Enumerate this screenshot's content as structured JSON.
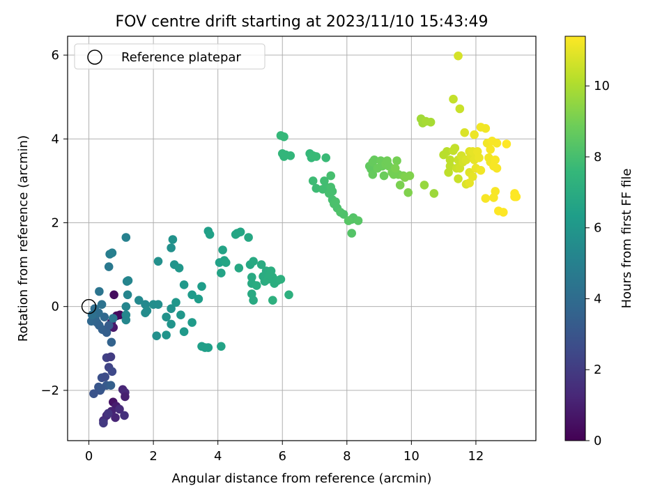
{
  "chart_data": {
    "type": "scatter",
    "title": "FOV centre drift starting at 2023/11/10 15:43:49",
    "xlabel": "Angular distance from reference (arcmin)",
    "ylabel": "Rotation from reference (arcmin)",
    "xlim": [
      -0.66,
      13.86
    ],
    "ylim": [
      -3.2,
      6.45
    ],
    "xticks": [
      0,
      2,
      4,
      6,
      8,
      10,
      12
    ],
    "yticks": [
      -2,
      0,
      2,
      4,
      6
    ],
    "xtick_labels": [
      "0",
      "2",
      "4",
      "6",
      "8",
      "10",
      "12"
    ],
    "ytick_labels": [
      "−2",
      "0",
      "2",
      "4",
      "6"
    ],
    "grid": true,
    "legend": {
      "location": "upper-left",
      "entries": [
        {
          "label": "Reference platepar",
          "marker": "open-circle"
        }
      ]
    },
    "reference_point": {
      "x": 0,
      "y": 0
    },
    "colorbar": {
      "label": "Hours from first FF file",
      "colormap": "viridis",
      "range": [
        0,
        11.4
      ],
      "ticks": [
        0,
        2,
        4,
        6,
        8,
        10
      ],
      "tick_labels": [
        "0",
        "2",
        "4",
        "6",
        "8",
        "10"
      ]
    },
    "series": [
      {
        "values_format": "[x_arcmin, y_arcmin, hours]",
        "points": [
          [
            0.86,
            -0.22,
            0.2
          ],
          [
            0.96,
            -0.2,
            0.3
          ],
          [
            0.78,
            0.28,
            0.4
          ],
          [
            0.7,
            -0.38,
            0.6
          ],
          [
            0.76,
            -0.5,
            0.8
          ],
          [
            0.75,
            -2.28,
            0.6
          ],
          [
            0.85,
            -2.38,
            0.9
          ],
          [
            0.7,
            -2.5,
            1.1
          ],
          [
            0.82,
            -2.65,
            1.2
          ],
          [
            0.55,
            -2.6,
            1.3
          ],
          [
            0.45,
            -2.72,
            1.5
          ],
          [
            0.95,
            -2.45,
            1.4
          ],
          [
            1.1,
            -2.6,
            1.6
          ],
          [
            1.05,
            -1.98,
            1.2
          ],
          [
            1.12,
            -2.05,
            1.3
          ],
          [
            1.12,
            -2.15,
            1.0
          ],
          [
            0.6,
            -2.55,
            1.7
          ],
          [
            0.45,
            -2.78,
            1.9
          ],
          [
            0.55,
            -1.22,
            2.2
          ],
          [
            0.68,
            -1.2,
            2.0
          ],
          [
            0.62,
            -1.45,
            2.3
          ],
          [
            0.72,
            -1.55,
            2.5
          ],
          [
            0.4,
            -1.7,
            2.8
          ],
          [
            0.5,
            -1.68,
            2.6
          ],
          [
            0.3,
            -1.92,
            3.0
          ],
          [
            0.35,
            -2.0,
            2.9
          ],
          [
            0.55,
            -1.88,
            3.2
          ],
          [
            0.68,
            -1.88,
            3.4
          ],
          [
            0.15,
            -2.08,
            2.9
          ],
          [
            0.38,
            -1.95,
            3.1
          ],
          [
            0.7,
            -0.85,
            3.6
          ],
          [
            0.2,
            -0.3,
            3.9
          ],
          [
            0.08,
            -0.35,
            3.8
          ],
          [
            0.25,
            -0.38,
            3.7
          ],
          [
            0.32,
            -0.45,
            3.6
          ],
          [
            0.42,
            -0.55,
            3.5
          ],
          [
            0.55,
            -0.62,
            3.4
          ],
          [
            0.62,
            -0.45,
            3.3
          ],
          [
            0.48,
            -0.25,
            3.8
          ],
          [
            0.3,
            -0.15,
            4.0
          ],
          [
            0.18,
            -0.05,
            4.1
          ],
          [
            0.1,
            -0.2,
            4.2
          ],
          [
            0.4,
            0.05,
            4.3
          ],
          [
            0.32,
            0.36,
            4.4
          ],
          [
            0.62,
            0.95,
            4.6
          ],
          [
            0.65,
            1.25,
            4.8
          ],
          [
            0.72,
            1.28,
            4.9
          ],
          [
            0.75,
            -0.28,
            4.5
          ],
          [
            1.15,
            1.65,
            5.0
          ],
          [
            1.18,
            0.6,
            5.1
          ],
          [
            1.22,
            0.62,
            5.2
          ],
          [
            1.2,
            0.28,
            5.2
          ],
          [
            1.15,
            -0.2,
            5.3
          ],
          [
            1.15,
            -0.32,
            5.3
          ],
          [
            1.15,
            0.0,
            5.2
          ],
          [
            1.55,
            0.15,
            5.4
          ],
          [
            1.75,
            0.05,
            5.4
          ],
          [
            1.8,
            -0.1,
            5.5
          ],
          [
            1.75,
            -0.15,
            5.5
          ],
          [
            2.0,
            0.05,
            5.6
          ],
          [
            2.15,
            0.05,
            5.6
          ],
          [
            2.1,
            -0.7,
            5.7
          ],
          [
            2.15,
            1.08,
            5.7
          ],
          [
            2.4,
            -0.25,
            5.8
          ],
          [
            2.55,
            -0.05,
            5.8
          ],
          [
            2.55,
            -0.42,
            5.9
          ],
          [
            2.4,
            -0.68,
            5.9
          ],
          [
            2.55,
            1.4,
            5.7
          ],
          [
            2.6,
            1.6,
            5.8
          ],
          [
            2.65,
            1.0,
            5.9
          ],
          [
            2.8,
            0.92,
            6.0
          ],
          [
            2.7,
            0.1,
            6.0
          ],
          [
            2.85,
            -0.2,
            6.0
          ],
          [
            2.95,
            0.52,
            6.1
          ],
          [
            2.95,
            -0.6,
            6.1
          ],
          [
            3.2,
            0.28,
            6.2
          ],
          [
            3.2,
            -0.38,
            6.2
          ],
          [
            3.4,
            0.18,
            6.3
          ],
          [
            3.5,
            0.48,
            6.3
          ],
          [
            3.5,
            -0.95,
            6.4
          ],
          [
            3.6,
            -0.98,
            6.4
          ],
          [
            3.7,
            -0.98,
            6.4
          ],
          [
            3.7,
            1.8,
            6.4
          ],
          [
            3.75,
            1.72,
            6.5
          ],
          [
            4.05,
            1.05,
            6.5
          ],
          [
            4.1,
            0.8,
            6.6
          ],
          [
            4.1,
            -0.95,
            6.6
          ],
          [
            4.15,
            1.35,
            6.6
          ],
          [
            4.2,
            1.1,
            6.6
          ],
          [
            4.25,
            1.05,
            6.7
          ],
          [
            4.6,
            1.75,
            6.7
          ],
          [
            4.7,
            1.78,
            6.7
          ],
          [
            4.55,
            1.72,
            6.7
          ],
          [
            4.65,
            0.92,
            6.8
          ],
          [
            4.95,
            1.65,
            6.8
          ],
          [
            5.0,
            1.0,
            6.8
          ],
          [
            5.1,
            1.08,
            6.9
          ],
          [
            5.05,
            0.7,
            6.9
          ],
          [
            5.05,
            0.55,
            6.9
          ],
          [
            5.05,
            0.3,
            6.9
          ],
          [
            5.1,
            0.15,
            6.9
          ],
          [
            5.2,
            0.5,
            7.0
          ],
          [
            5.35,
            1.0,
            7.0
          ],
          [
            5.4,
            0.72,
            7.0
          ],
          [
            5.45,
            0.6,
            7.0
          ],
          [
            5.5,
            0.85,
            7.0
          ],
          [
            5.55,
            0.65,
            7.1
          ],
          [
            5.65,
            0.85,
            7.1
          ],
          [
            5.7,
            0.7,
            7.1
          ],
          [
            5.75,
            0.55,
            7.1
          ],
          [
            5.8,
            0.6,
            7.1
          ],
          [
            5.85,
            0.62,
            7.1
          ],
          [
            5.6,
            0.75,
            7.1
          ],
          [
            5.95,
            0.65,
            7.2
          ],
          [
            5.7,
            0.15,
            7.2
          ],
          [
            6.2,
            0.28,
            7.2
          ],
          [
            5.95,
            4.08,
            7.6
          ],
          [
            6.05,
            4.05,
            7.6
          ],
          [
            6.0,
            3.65,
            7.5
          ],
          [
            6.05,
            3.58,
            7.5
          ],
          [
            6.1,
            3.62,
            7.5
          ],
          [
            6.25,
            3.6,
            7.5
          ],
          [
            6.85,
            3.65,
            7.6
          ],
          [
            6.9,
            3.55,
            7.6
          ],
          [
            6.95,
            3.6,
            7.7
          ],
          [
            7.05,
            3.58,
            7.7
          ],
          [
            7.35,
            3.55,
            7.7
          ],
          [
            6.95,
            3.0,
            7.8
          ],
          [
            7.05,
            2.82,
            7.8
          ],
          [
            7.25,
            2.8,
            7.9
          ],
          [
            7.3,
            3.0,
            7.9
          ],
          [
            7.35,
            2.85,
            7.9
          ],
          [
            7.5,
            2.85,
            8.0
          ],
          [
            7.55,
            2.75,
            8.0
          ],
          [
            7.45,
            2.7,
            8.0
          ],
          [
            7.55,
            2.55,
            8.0
          ],
          [
            7.6,
            2.45,
            8.1
          ],
          [
            7.65,
            2.5,
            8.1
          ],
          [
            7.7,
            2.35,
            8.1
          ],
          [
            7.8,
            2.25,
            8.2
          ],
          [
            7.9,
            2.2,
            8.2
          ],
          [
            7.5,
            3.12,
            8.0
          ],
          [
            8.05,
            2.05,
            8.3
          ],
          [
            8.15,
            2.08,
            8.3
          ],
          [
            8.2,
            2.12,
            8.3
          ],
          [
            8.35,
            2.05,
            8.4
          ],
          [
            8.15,
            1.75,
            8.3
          ],
          [
            8.05,
            2.05,
            8.4
          ],
          [
            8.7,
            3.35,
            8.6
          ],
          [
            8.75,
            3.28,
            8.6
          ],
          [
            8.8,
            3.45,
            8.7
          ],
          [
            8.85,
            3.5,
            8.7
          ],
          [
            8.8,
            3.15,
            8.7
          ],
          [
            8.95,
            3.3,
            8.8
          ],
          [
            9.05,
            3.48,
            8.8
          ],
          [
            9.1,
            3.35,
            8.8
          ],
          [
            9.15,
            3.12,
            8.8
          ],
          [
            9.2,
            3.4,
            8.9
          ],
          [
            9.25,
            3.48,
            8.9
          ],
          [
            9.3,
            3.35,
            8.9
          ],
          [
            9.4,
            3.2,
            9.0
          ],
          [
            9.45,
            3.15,
            9.0
          ],
          [
            9.55,
            3.48,
            9.0
          ],
          [
            9.6,
            3.15,
            9.0
          ],
          [
            9.65,
            2.9,
            9.1
          ],
          [
            9.75,
            3.12,
            9.1
          ],
          [
            9.8,
            3.08,
            9.2
          ],
          [
            9.9,
            2.72,
            9.2
          ],
          [
            9.95,
            3.12,
            9.2
          ],
          [
            9.5,
            3.3,
            9.1
          ],
          [
            10.3,
            4.48,
            9.8
          ],
          [
            10.35,
            4.38,
            9.8
          ],
          [
            10.45,
            4.42,
            9.9
          ],
          [
            10.6,
            4.4,
            9.9
          ],
          [
            10.4,
            2.9,
            9.6
          ],
          [
            10.7,
            2.7,
            9.7
          ],
          [
            11.0,
            3.62,
            10.2
          ],
          [
            11.1,
            3.7,
            10.2
          ],
          [
            11.15,
            3.2,
            10.3
          ],
          [
            11.2,
            3.5,
            10.3
          ],
          [
            11.2,
            3.35,
            10.3
          ],
          [
            11.3,
            3.72,
            10.4
          ],
          [
            11.3,
            4.95,
            10.4
          ],
          [
            11.35,
            3.78,
            10.4
          ],
          [
            11.4,
            3.3,
            10.5
          ],
          [
            11.45,
            3.05,
            10.5
          ],
          [
            11.45,
            3.5,
            10.5
          ],
          [
            11.5,
            3.3,
            10.6
          ],
          [
            11.5,
            4.72,
            10.5
          ],
          [
            11.45,
            5.98,
            10.7
          ],
          [
            11.55,
            3.6,
            10.7
          ],
          [
            11.6,
            3.45,
            10.7
          ],
          [
            11.65,
            4.15,
            10.8
          ],
          [
            11.7,
            3.5,
            10.8
          ],
          [
            11.7,
            2.92,
            10.8
          ],
          [
            11.8,
            3.7,
            10.9
          ],
          [
            11.8,
            3.2,
            10.9
          ],
          [
            11.85,
            3.6,
            10.9
          ],
          [
            11.9,
            3.7,
            11.0
          ],
          [
            11.95,
            3.5,
            11.0
          ],
          [
            11.9,
            3.1,
            11.0
          ],
          [
            11.8,
            2.95,
            11.0
          ],
          [
            11.95,
            4.1,
            11.1
          ],
          [
            12.0,
            3.3,
            11.1
          ],
          [
            12.05,
            3.7,
            11.1
          ],
          [
            12.1,
            3.55,
            11.1
          ],
          [
            12.15,
            3.25,
            11.2
          ],
          [
            12.15,
            4.28,
            11.2
          ],
          [
            12.3,
            4.25,
            11.2
          ],
          [
            12.35,
            3.9,
            11.2
          ],
          [
            12.4,
            3.55,
            11.2
          ],
          [
            12.45,
            3.45,
            11.2
          ],
          [
            12.45,
            3.75,
            11.3
          ],
          [
            12.5,
            3.95,
            11.3
          ],
          [
            12.55,
            3.35,
            11.3
          ],
          [
            12.6,
            3.5,
            11.3
          ],
          [
            12.6,
            2.75,
            11.3
          ],
          [
            12.65,
            3.3,
            11.3
          ],
          [
            12.55,
            2.6,
            11.3
          ],
          [
            12.3,
            2.58,
            11.3
          ],
          [
            12.7,
            2.28,
            11.4
          ],
          [
            12.85,
            2.25,
            11.4
          ],
          [
            12.95,
            3.88,
            11.4
          ],
          [
            13.2,
            2.7,
            11.4
          ],
          [
            13.25,
            2.62,
            11.4
          ],
          [
            13.2,
            2.62,
            11.4
          ],
          [
            12.65,
            3.9,
            11.3
          ]
        ]
      }
    ]
  }
}
